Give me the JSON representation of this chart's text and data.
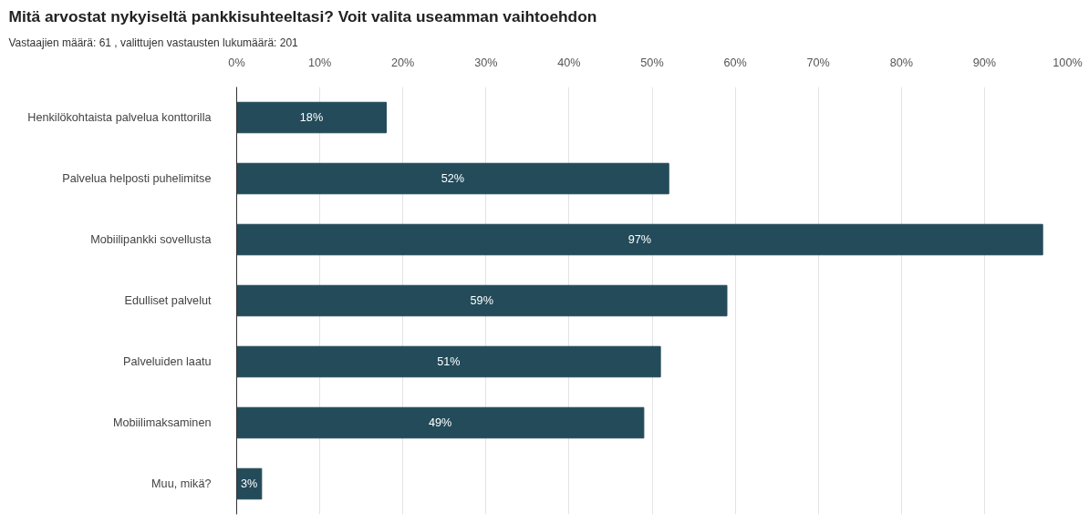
{
  "chart_data": {
    "type": "bar",
    "orientation": "horizontal",
    "title": "Mitä arvostat nykyiseltä pankkisuhteeltasi? Voit valita useamman vaihtoehdon",
    "subtitle": "Vastaajien määrä: 61 , valittujen vastausten lukumäärä: 201",
    "categories": [
      "Henkilökohtaista palvelua konttorilla",
      "Palvelua helposti puhelimitse",
      "Mobiilipankki sovellusta",
      "Edulliset palvelut",
      "Palveluiden laatu",
      "Mobiilimaksaminen",
      "Muu, mikä?"
    ],
    "values": [
      18,
      52,
      97,
      59,
      51,
      49,
      3
    ],
    "value_labels": [
      "18%",
      "52%",
      "97%",
      "59%",
      "51%",
      "49%",
      "3%"
    ],
    "color": "#234b5a",
    "xlim": [
      0,
      100
    ],
    "xticks": [
      {
        "value": 0,
        "label": "0%"
      },
      {
        "value": 10,
        "label": "10%"
      },
      {
        "value": 20,
        "label": "20%"
      },
      {
        "value": 30,
        "label": "30%"
      },
      {
        "value": 40,
        "label": "40%"
      },
      {
        "value": 50,
        "label": "50%"
      },
      {
        "value": 60,
        "label": "60%"
      },
      {
        "value": 70,
        "label": "70%"
      },
      {
        "value": 80,
        "label": "80%"
      },
      {
        "value": 90,
        "label": "90%"
      },
      {
        "value": 100,
        "label": "100%"
      }
    ],
    "grid": "x"
  }
}
